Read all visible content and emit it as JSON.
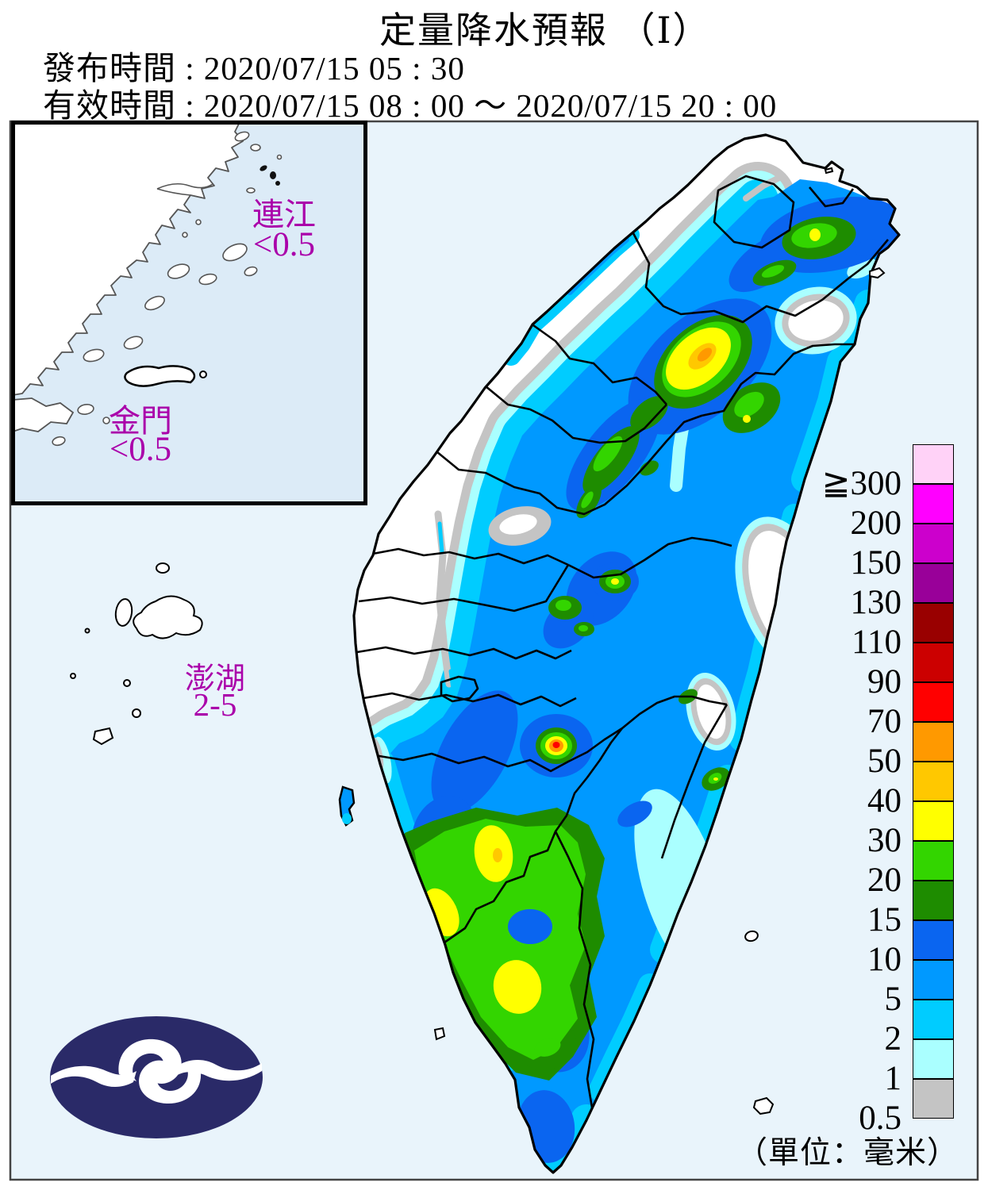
{
  "header": {
    "title": "定量降水預報 （Ⅰ）",
    "issued": "發布時間 : 2020/07/15 05 : 30",
    "valid": "有效時間 : 2020/07/15 08 : 00 ～ 2020/07/15 20 : 00"
  },
  "islands": {
    "lienchiang": {
      "name": "連江",
      "value": "<0.5"
    },
    "kinmen": {
      "name": "金門",
      "value": "<0.5"
    },
    "penghu": {
      "name": "澎湖",
      "value": "2-5"
    }
  },
  "legend": {
    "unit": "（單位：毫米）",
    "items": [
      {
        "label": "≧300",
        "color": "#FFD2F7"
      },
      {
        "label": "200",
        "color": "#FF00FF"
      },
      {
        "label": "150",
        "color": "#CC00CC"
      },
      {
        "label": "130",
        "color": "#990099"
      },
      {
        "label": "110",
        "color": "#990000"
      },
      {
        "label": "90",
        "color": "#CC0000"
      },
      {
        "label": "70",
        "color": "#FF0000"
      },
      {
        "label": "50",
        "color": "#FF9900"
      },
      {
        "label": "40",
        "color": "#FFC800"
      },
      {
        "label": "30",
        "color": "#FFFF00"
      },
      {
        "label": "20",
        "color": "#33D500"
      },
      {
        "label": "15",
        "color": "#1E8C00"
      },
      {
        "label": "10",
        "color": "#0A65F0"
      },
      {
        "label": "5",
        "color": "#0099FF"
      },
      {
        "label": "2",
        "color": "#00CCFF"
      },
      {
        "label": "1",
        "color": "#AAFFFF"
      },
      {
        "label": "0.5",
        "color": "#C4C4C4"
      }
    ]
  },
  "colors": {
    "sea": "#E9F4FB",
    "inset_sea": "#DCEBF7",
    "land_no_rain": "#FFFFFF",
    "coastline": "#000000",
    "island_label": "#AA00AA",
    "logo_navy": "#2A2A68",
    "panel_border": "#444444"
  }
}
